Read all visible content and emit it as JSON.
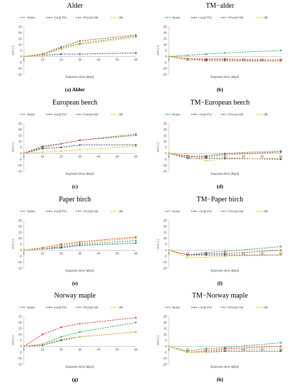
{
  "figure": {
    "colors": {
      "None": "#16a34a",
      "Acryl-PU": "#1e3a8a",
      "PAcryl-Ald": "#dc2626",
      "Alk": "#f5b800"
    }
  },
  "chart_data": [
    {
      "type": "line",
      "title": "Alder",
      "panel": "(a) Alder",
      "legend": [
        "None",
        "Acryl-PU",
        "PAcryl-Ald",
        "Alk"
      ],
      "legend_position": "top",
      "x": [
        0,
        10,
        20,
        30,
        60
      ],
      "xlabel": "Exposure time (days)",
      "ylabel": "ΔYI (−)",
      "ylim": [
        -15,
        25
      ],
      "yticks": [
        -15,
        -10,
        -5,
        0,
        5,
        10,
        15,
        20,
        25
      ],
      "xticks": [
        0,
        10,
        20,
        30,
        40,
        50,
        60
      ],
      "series": [
        {
          "name": "None",
          "values": [
            0,
            2,
            7,
            11,
            17
          ]
        },
        {
          "name": "Acryl-PU",
          "values": [
            0,
            1,
            2,
            2,
            3
          ]
        },
        {
          "name": "PAcryl-Ald",
          "values": [
            0,
            2,
            8,
            13,
            18
          ]
        },
        {
          "name": "Alk",
          "values": [
            0,
            1,
            6,
            10,
            16
          ]
        }
      ]
    },
    {
      "type": "line",
      "title": "TM−alder",
      "panel": "(b)",
      "legend": [
        "None",
        "Acryl-PU",
        "PAcryl-Ald",
        "Alk"
      ],
      "legend_position": "top",
      "x": [
        0,
        10,
        20,
        30,
        60
      ],
      "xlabel": "Exposure time (days)",
      "ylabel": "ΔYI (−)",
      "ylim": [
        -15,
        25
      ],
      "yticks": [
        -15,
        -10,
        -5,
        0,
        5,
        10,
        15,
        20,
        25
      ],
      "xticks": [
        0,
        10,
        20,
        30,
        40,
        50,
        60
      ],
      "series": [
        {
          "name": "None",
          "values": [
            0,
            1,
            2,
            3,
            5
          ]
        },
        {
          "name": "Acryl-PU",
          "values": [
            0,
            -2,
            -3,
            -3,
            -4
          ]
        },
        {
          "name": "PAcryl-Ald",
          "values": [
            0,
            -2,
            -2,
            -2,
            -3
          ]
        },
        {
          "name": "Alk",
          "values": [
            0,
            -3,
            -4,
            -4,
            -4
          ]
        }
      ]
    },
    {
      "type": "line",
      "title": "European beech",
      "panel": "(c)",
      "legend": [
        "None",
        "Acryl-PU",
        "Pacryl-Ald",
        "Alk"
      ],
      "legend_position": "top",
      "x": [
        0,
        10,
        20,
        30,
        60
      ],
      "xlabel": "Exposure time (days)",
      "ylabel": "ΔYI (−)",
      "ylim": [
        -15,
        25
      ],
      "yticks": [
        -15,
        -10,
        -5,
        0,
        5,
        10,
        15,
        20,
        25
      ],
      "xticks": [
        0,
        10,
        20,
        30,
        40,
        50,
        60
      ],
      "series": [
        {
          "name": "None",
          "values": [
            0,
            5,
            8,
            11,
            15
          ]
        },
        {
          "name": "Acryl-PU",
          "values": [
            0,
            4,
            5,
            7,
            7
          ]
        },
        {
          "name": "Pacryl-Ald",
          "values": [
            0,
            6,
            8,
            11,
            16
          ]
        },
        {
          "name": "Alk",
          "values": [
            0,
            1,
            2,
            3,
            6
          ]
        }
      ]
    },
    {
      "type": "line",
      "title": "TM−European beech",
      "panel": "(d)",
      "legend": [
        "None",
        "Acryl-PU",
        "PAcryl-Ald",
        "Alk"
      ],
      "legend_position": "top",
      "x": [
        0,
        10,
        20,
        30,
        60
      ],
      "xlabel": "Exposure time (days)",
      "ylabel": "ΔYI (−)",
      "ylim": [
        -15,
        25
      ],
      "yticks": [
        -15,
        -10,
        -5,
        0,
        5,
        10,
        15,
        20,
        25
      ],
      "xticks": [
        0,
        10,
        20,
        30,
        40,
        50,
        60
      ],
      "series": [
        {
          "name": "None",
          "values": [
            0,
            -3,
            -2,
            0,
            2
          ]
        },
        {
          "name": "Acryl-PU",
          "values": [
            0,
            -4,
            -4,
            -4,
            -5
          ]
        },
        {
          "name": "PAcryl-Ald",
          "values": [
            0,
            -2,
            -3,
            -1,
            1
          ]
        },
        {
          "name": "Alk",
          "values": [
            0,
            -3,
            -6,
            -5,
            -4
          ]
        }
      ]
    },
    {
      "type": "line",
      "title": "Paper birch",
      "panel": "(e)",
      "legend": [
        "None",
        "Acryl-PU",
        "PAcryl-Ald",
        "Alk"
      ],
      "legend_position": "top",
      "x": [
        0,
        10,
        20,
        30,
        60
      ],
      "xlabel": "Exposure time (days)",
      "ylabel": "ΔYI (−)",
      "ylim": [
        -15,
        25
      ],
      "yticks": [
        -15,
        -10,
        -5,
        0,
        5,
        10,
        15,
        20,
        25
      ],
      "xticks": [
        0,
        10,
        20,
        30,
        40,
        50,
        60
      ],
      "series": [
        {
          "name": "None",
          "values": [
            0,
            1,
            3,
            5,
            8
          ]
        },
        {
          "name": "Acryl-PU",
          "values": [
            0,
            1,
            2,
            4,
            6
          ]
        },
        {
          "name": "PAcryl-Ald",
          "values": [
            0,
            2,
            5,
            7,
            11
          ]
        },
        {
          "name": "Alk",
          "values": [
            0,
            1,
            4,
            6,
            10
          ]
        }
      ]
    },
    {
      "type": "line",
      "title": "TM−Paper birch",
      "panel": "(f)",
      "legend": [
        "None",
        "Acryl-PU",
        "PAcryl-Ald",
        "Alk"
      ],
      "legend_position": "top",
      "x": [
        0,
        10,
        20,
        30,
        60
      ],
      "xlabel": "Exposure time (days)",
      "ylabel": "ΔYI (−)",
      "ylim": [
        -15,
        25
      ],
      "yticks": [
        -15,
        -10,
        -5,
        0,
        5,
        10,
        15,
        20,
        25
      ],
      "xticks": [
        0,
        10,
        20,
        30,
        40,
        50,
        60
      ],
      "series": [
        {
          "name": "None",
          "values": [
            0,
            -4,
            -2,
            -1,
            3
          ]
        },
        {
          "name": "Acryl-PU",
          "values": [
            0,
            -4,
            -4,
            -4,
            -4
          ]
        },
        {
          "name": "PAcryl-Ald",
          "values": [
            0,
            -4,
            -3,
            -3,
            0
          ]
        },
        {
          "name": "Alk",
          "values": [
            0,
            -6,
            -6,
            -5,
            -4
          ]
        }
      ]
    },
    {
      "type": "line",
      "title": "Norway maple",
      "panel": "(g)",
      "legend": [
        "None",
        "Acryl-PU",
        "PAcryl-Ald",
        "Alk"
      ],
      "legend_position": "top",
      "x": [
        0,
        10,
        20,
        30,
        60
      ],
      "xlabel": "Exposure time (days)",
      "ylabel": "ΔYI (−)",
      "ylim": [
        -15,
        25
      ],
      "yticks": [
        -15,
        -10,
        -5,
        0,
        5,
        10,
        15,
        20,
        25
      ],
      "xticks": [
        0,
        10,
        20,
        30,
        40,
        50,
        60
      ],
      "series": [
        {
          "name": "None",
          "values": [
            0,
            2,
            8,
            12,
            20
          ]
        },
        {
          "name": "Acryl-PU",
          "values": [
            0,
            1,
            5,
            8,
            12
          ]
        },
        {
          "name": "PAcryl-Ald",
          "values": [
            0,
            10,
            16,
            19,
            24
          ]
        },
        {
          "name": "Alk",
          "values": [
            0,
            2,
            6,
            8,
            12
          ]
        }
      ]
    },
    {
      "type": "line",
      "title": "TM−Norway maple",
      "panel": "(h)",
      "legend": [
        "None",
        "Acryl-PU",
        "PAcryl-Ald",
        "Alk"
      ],
      "legend_position": "top",
      "x": [
        0,
        10,
        20,
        30,
        60
      ],
      "xlabel": "Exposure time (days)",
      "ylabel": "ΔYI (−)",
      "ylim": [
        -15,
        25
      ],
      "yticks": [
        -15,
        -10,
        -5,
        0,
        5,
        10,
        15,
        20,
        25
      ],
      "xticks": [
        0,
        10,
        20,
        30,
        40,
        50,
        60
      ],
      "series": [
        {
          "name": "None",
          "values": [
            0,
            -4,
            -2,
            -1,
            3
          ]
        },
        {
          "name": "Acryl-PU",
          "values": [
            0,
            -5,
            -5,
            -4,
            -4
          ]
        },
        {
          "name": "PAcryl-Ald",
          "values": [
            0,
            -5,
            -4,
            -2,
            0
          ]
        },
        {
          "name": "Alk",
          "values": [
            0,
            -5,
            -5,
            -3,
            -2
          ]
        }
      ]
    }
  ]
}
